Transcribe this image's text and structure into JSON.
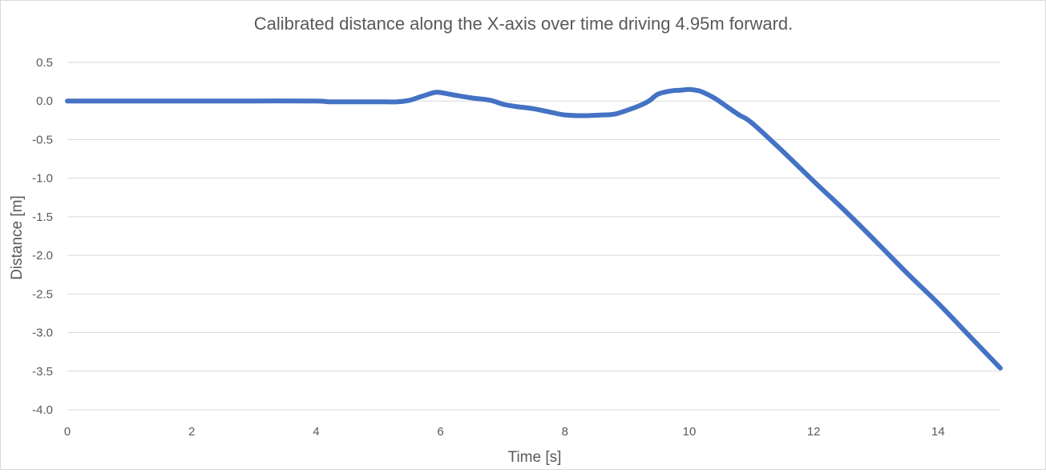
{
  "chart_data": {
    "type": "line",
    "title": "Calibrated distance along the X-axis over time driving 4.95m forward.",
    "xlabel": "Time [s]",
    "ylabel": "Distance [m]",
    "xlim": [
      0,
      15
    ],
    "ylim": [
      -4.0,
      0.5
    ],
    "xticks": [
      0,
      2,
      4,
      6,
      8,
      10,
      12,
      14
    ],
    "xtick_labels": [
      "0",
      "2",
      "4",
      "6",
      "8",
      "10",
      "12",
      "14"
    ],
    "yticks": [
      0.5,
      0.0,
      -0.5,
      -1.0,
      -1.5,
      -2.0,
      -2.5,
      -3.0,
      -3.5,
      -4.0
    ],
    "ytick_labels": [
      "0.5",
      "0.0",
      "-0.5",
      "-1.0",
      "-1.5",
      "-2.0",
      "-2.5",
      "-3.0",
      "-3.5",
      "-4.0"
    ],
    "grid": true,
    "legend": "none",
    "series": [
      {
        "color": "#4472c4",
        "x": [
          0,
          1,
          2,
          3,
          4,
          4.2,
          4.5,
          5,
          5.3,
          5.5,
          5.7,
          5.9,
          6.0,
          6.2,
          6.5,
          6.8,
          7.0,
          7.2,
          7.5,
          7.8,
          8.0,
          8.3,
          8.6,
          8.8,
          9.0,
          9.2,
          9.35,
          9.5,
          9.7,
          9.85,
          10.0,
          10.1,
          10.2,
          10.4,
          10.6,
          10.8,
          11,
          11.5,
          12,
          12.5,
          13,
          13.5,
          14,
          14.5,
          15
        ],
        "y": [
          0.0,
          0.0,
          0.0,
          0.0,
          0.0,
          -0.01,
          -0.01,
          -0.01,
          -0.01,
          0.01,
          0.06,
          0.11,
          0.11,
          0.08,
          0.04,
          0.01,
          -0.04,
          -0.07,
          -0.1,
          -0.15,
          -0.18,
          -0.19,
          -0.18,
          -0.17,
          -0.12,
          -0.06,
          0.0,
          0.09,
          0.13,
          0.14,
          0.15,
          0.14,
          0.12,
          0.04,
          -0.07,
          -0.18,
          -0.28,
          -0.65,
          -1.04,
          -1.42,
          -1.82,
          -2.23,
          -2.62,
          -3.04,
          -3.46
        ]
      }
    ]
  }
}
